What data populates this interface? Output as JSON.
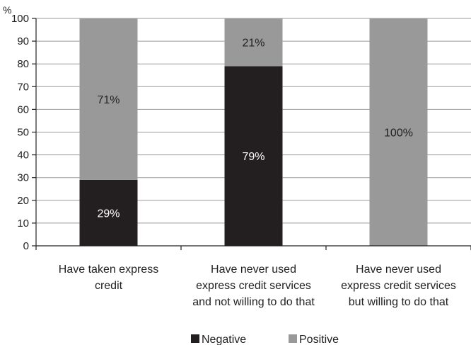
{
  "chart_data": {
    "type": "bar",
    "stacked": true,
    "unit_label": "%",
    "ylim": [
      0,
      100
    ],
    "yticks": [
      0,
      10,
      20,
      30,
      40,
      50,
      60,
      70,
      80,
      90,
      100
    ],
    "grid": true,
    "legend_position": "bottom",
    "categories": [
      [
        "Have taken express",
        "credit"
      ],
      [
        "Have never used",
        "express credit services",
        "and not willing to do that"
      ],
      [
        "Have never used",
        "express credit services",
        "but willing to do that"
      ]
    ],
    "series": [
      {
        "name": "Negative",
        "values": [
          29,
          79,
          0
        ],
        "labels": [
          "29%",
          "79%",
          ""
        ],
        "color": "#231f20",
        "label_color": "#ffffff"
      },
      {
        "name": "Positive",
        "values": [
          71,
          21,
          100
        ],
        "labels": [
          "71%",
          "21%",
          "100%"
        ],
        "color": "#999999",
        "label_color": "#222222"
      }
    ]
  }
}
